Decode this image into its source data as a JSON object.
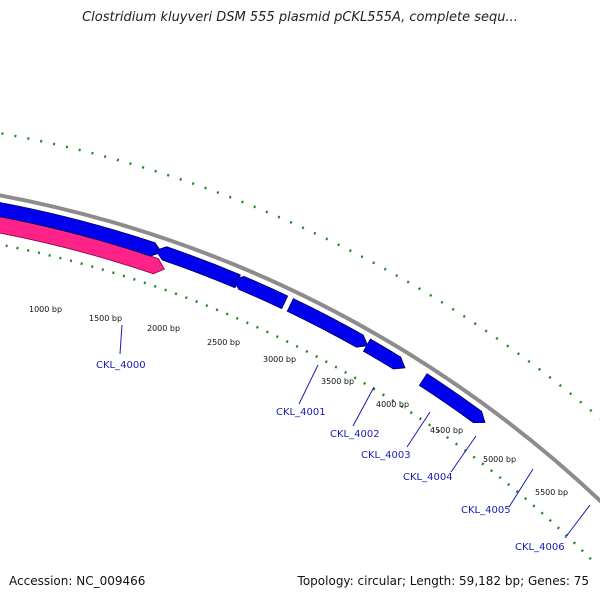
{
  "title": "Clostridium kluyveri DSM 555 plasmid pCKL555A, complete sequ...",
  "footer": {
    "accession": "Accession: NC_009466",
    "summary": "Topology: circular; Length: 59,182 bp; Genes: 75"
  },
  "colors": {
    "backbone": "#8c8c8c",
    "forward_gene": "#0000ee",
    "reverse_gene": "#ff2288",
    "tick": "#1e8a1e",
    "gene_label": "#1a1ab5",
    "leader_line": "#1a1ab5"
  },
  "scale_labels": [
    "1000 bp",
    "1500 bp",
    "2000 bp",
    "2500 bp",
    "3000 bp",
    "3500 bp",
    "4000 bp",
    "4500 bp",
    "5000 bp",
    "5500 bp"
  ],
  "genes": [
    {
      "label": "CKL_4000",
      "strand": "reverse"
    },
    {
      "label": "CKL_4001",
      "strand": "forward"
    },
    {
      "label": "CKL_4002",
      "strand": "forward"
    },
    {
      "label": "CKL_4003",
      "strand": "forward"
    },
    {
      "label": "CKL_4004",
      "strand": "forward"
    },
    {
      "label": "CKL_4005",
      "strand": "forward"
    },
    {
      "label": "CKL_4006",
      "strand": "forward"
    }
  ]
}
